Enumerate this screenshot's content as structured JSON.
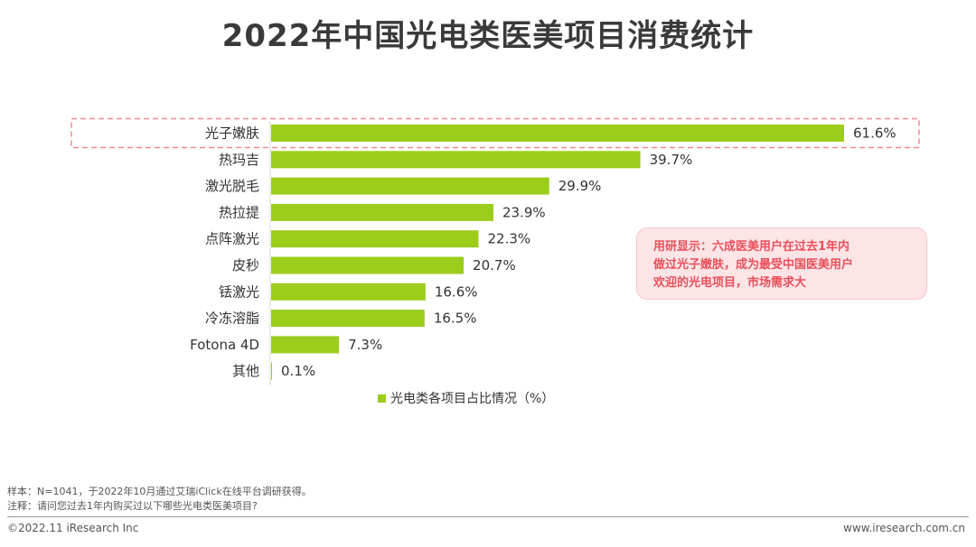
{
  "title": "2022年中国光电类医美项目消费统计",
  "chart_data": {
    "type": "bar",
    "orientation": "horizontal",
    "categories": [
      "光子嫩肤",
      "热玛吉",
      "激光脱毛",
      "热拉提",
      "点阵激光",
      "皮秒",
      "铥激光",
      "冷冻溶脂",
      "Fotona 4D",
      "其他"
    ],
    "series": [
      {
        "name": "光电类各项目占比情况（%）",
        "values": [
          61.6,
          39.7,
          29.9,
          23.9,
          22.3,
          20.7,
          16.6,
          16.5,
          7.3,
          0.1
        ],
        "labels": [
          "61.6%",
          "39.7%",
          "29.9%",
          "23.9%",
          "22.3%",
          "20.7%",
          "16.6%",
          "16.5%",
          "7.3%",
          "0.1%"
        ]
      }
    ],
    "xlim": [
      0,
      61.6
    ],
    "grid": false,
    "legend_position": "bottom",
    "highlighted_category": "光子嫩肤"
  },
  "colors": {
    "bar": "#9ccc1c",
    "highlight_border": "#ef8a93",
    "callout_text": "#e8505b",
    "axis": "#d9d9d9"
  },
  "callout": {
    "lines": [
      "用研显示：六成医美用户在过去1年内",
      "做过光子嫩肤，成为最受中国医美用户",
      "欢迎的光电项目，市场需求大"
    ]
  },
  "source": {
    "sample": "样本：N=1041，于2022年10月通过艾瑞iClick在线平台调研获得。",
    "note": "注释：请问您过去1年内购买过以下哪些光电类医美项目?"
  },
  "footer": {
    "copyright": "©2022.11 iResearch Inc",
    "website": "www.iresearch.com.cn"
  }
}
